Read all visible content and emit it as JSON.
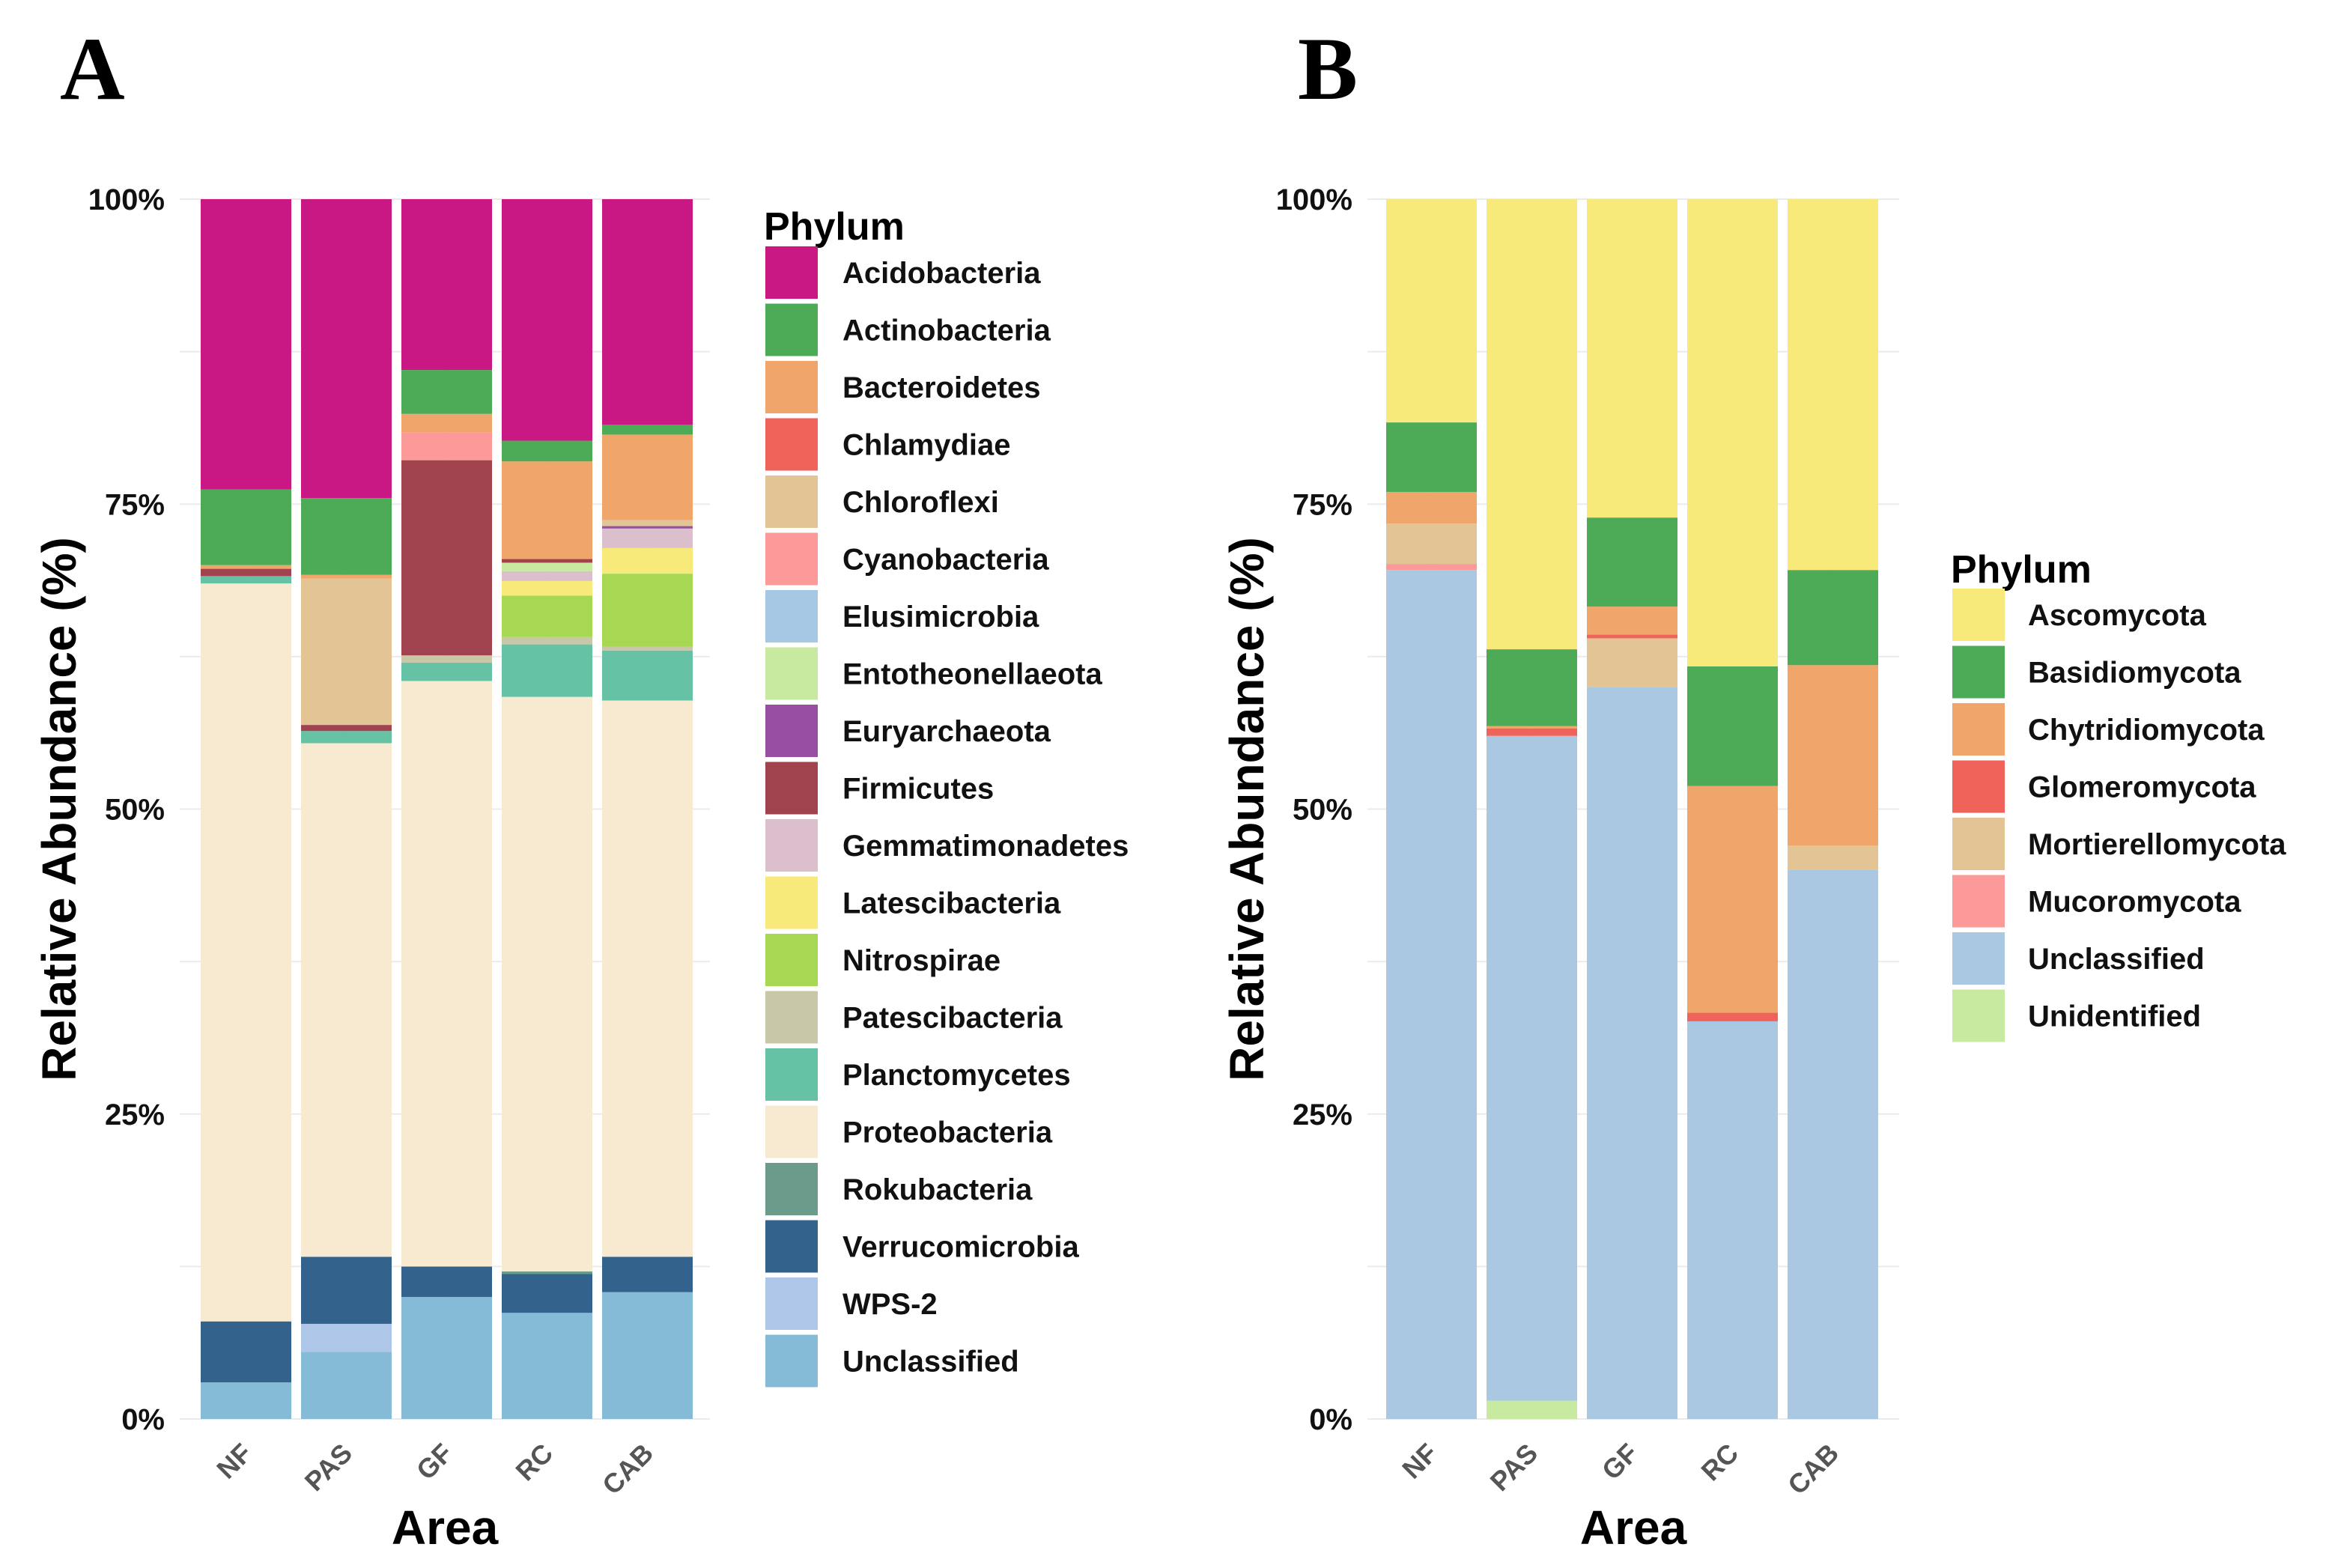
{
  "chart_data": [
    {
      "panel": "A",
      "type": "bar",
      "stacked": true,
      "xlabel": "Area",
      "ylabel": "Relative Abundance (%)",
      "ylim": [
        0,
        100
      ],
      "yticks": [
        "0%",
        "25%",
        "50%",
        "75%",
        "100%"
      ],
      "categories": [
        "NF",
        "PAS",
        "GF",
        "RC",
        "CAB"
      ],
      "legend_title": "Phylum",
      "series": [
        {
          "name": "Unclassified",
          "color": "#86bbd8",
          "values": [
            3.0,
            5.5,
            10.0,
            8.7,
            10.4
          ]
        },
        {
          "name": "WPS-2",
          "color": "#aec7e8",
          "values": [
            0.0,
            2.3,
            0.0,
            0.0,
            0.0
          ]
        },
        {
          "name": "Verrucomicrobia",
          "color": "#33638d",
          "values": [
            5.0,
            5.5,
            2.5,
            3.2,
            2.9
          ]
        },
        {
          "name": "Rokubacteria",
          "color": "#6a9b8b",
          "values": [
            0.0,
            0.0,
            0.0,
            0.2,
            0.0
          ]
        },
        {
          "name": "Proteobacteria",
          "color": "#f7ead0",
          "values": [
            60.5,
            42.1,
            48.0,
            47.1,
            45.6
          ]
        },
        {
          "name": "Planctomycetes",
          "color": "#66c2a5",
          "values": [
            0.6,
            1.0,
            1.5,
            4.3,
            4.1
          ]
        },
        {
          "name": "Patescibacteria",
          "color": "#c8c8a9",
          "values": [
            0.0,
            0.0,
            0.6,
            0.6,
            0.3
          ]
        },
        {
          "name": "Nitrospirae",
          "color": "#a6d854",
          "values": [
            0.0,
            0.0,
            0.0,
            3.4,
            6.0
          ]
        },
        {
          "name": "Latescibacteria",
          "color": "#f7ea7b",
          "values": [
            0.0,
            0.0,
            0.0,
            1.2,
            2.1
          ]
        },
        {
          "name": "Gemmatimonadetes",
          "color": "#dbbfcc",
          "values": [
            0.0,
            0.0,
            0.0,
            0.8,
            1.6
          ]
        },
        {
          "name": "Euryarchaeota",
          "color": "#984ea3",
          "values": [
            0.0,
            0.0,
            0.0,
            0.0,
            0.2
          ]
        },
        {
          "name": "Entotheonellaeota",
          "color": "#c7e9a0",
          "values": [
            0.0,
            0.0,
            0.0,
            0.7,
            0.0
          ]
        },
        {
          "name": "Firmicutes",
          "color": "#a0434f",
          "values": [
            0.6,
            0.5,
            16.0,
            0.3,
            0.0
          ]
        },
        {
          "name": "Elusimicrobia",
          "color": "#a6c8e4",
          "values": [
            0.0,
            0.0,
            0.0,
            0.0,
            0.0
          ]
        },
        {
          "name": "Cyanobacteria",
          "color": "#fb9a99",
          "values": [
            0.0,
            0.0,
            2.3,
            0.0,
            0.0
          ]
        },
        {
          "name": "Chloroflexi",
          "color": "#e3c595",
          "values": [
            0.0,
            12.0,
            0.0,
            0.0,
            0.5
          ]
        },
        {
          "name": "Chlamydiae",
          "color": "#f0635a",
          "values": [
            0.0,
            0.0,
            0.0,
            0.0,
            0.0
          ]
        },
        {
          "name": "Bacteroidetes",
          "color": "#f0a56a",
          "values": [
            0.3,
            0.3,
            1.5,
            8.0,
            7.0
          ]
        },
        {
          "name": "Actinobacteria",
          "color": "#4daa57",
          "values": [
            6.2,
            6.3,
            3.6,
            1.7,
            0.8
          ]
        },
        {
          "name": "Acidobacteria",
          "color": "#c91884",
          "values": [
            23.8,
            24.5,
            14.0,
            19.8,
            18.5
          ]
        }
      ],
      "legend_order": [
        "Acidobacteria",
        "Actinobacteria",
        "Bacteroidetes",
        "Chlamydiae",
        "Chloroflexi",
        "Cyanobacteria",
        "Elusimicrobia",
        "Entotheonellaeota",
        "Euryarchaeota",
        "Firmicutes",
        "Gemmatimonadetes",
        "Latescibacteria",
        "Nitrospirae",
        "Patescibacteria",
        "Planctomycetes",
        "Proteobacteria",
        "Rokubacteria",
        "Verrucomicrobia",
        "WPS-2",
        "Unclassified"
      ]
    },
    {
      "panel": "B",
      "type": "bar",
      "stacked": true,
      "xlabel": "Area",
      "ylabel": "Relative Abundance (%)",
      "ylim": [
        0,
        100
      ],
      "yticks": [
        "0%",
        "25%",
        "50%",
        "75%",
        "100%"
      ],
      "categories": [
        "NF",
        "PAS",
        "GF",
        "RC",
        "CAB"
      ],
      "legend_title": "Phylum",
      "series": [
        {
          "name": "Unidentified",
          "color": "#c7e9a0",
          "values": [
            0.0,
            1.5,
            0.0,
            0.0,
            0.0
          ]
        },
        {
          "name": "Unclassified",
          "color": "#abc8e3",
          "values": [
            69.6,
            54.5,
            60.0,
            32.6,
            45.0
          ]
        },
        {
          "name": "Mucoromycota",
          "color": "#fb9a99",
          "values": [
            0.5,
            0.0,
            0.0,
            0.0,
            0.0
          ]
        },
        {
          "name": "Mortierellomycota",
          "color": "#e3c595",
          "values": [
            3.3,
            0.0,
            4.0,
            0.0,
            2.0
          ]
        },
        {
          "name": "Glomeromycota",
          "color": "#f0635a",
          "values": [
            0.0,
            0.6,
            0.3,
            0.7,
            0.0
          ]
        },
        {
          "name": "Chytridiomycota",
          "color": "#f0a56a",
          "values": [
            2.6,
            0.2,
            2.3,
            18.6,
            14.8
          ]
        },
        {
          "name": "Basidiomycota",
          "color": "#4daa57",
          "values": [
            5.7,
            6.3,
            7.3,
            9.8,
            7.8
          ]
        },
        {
          "name": "Ascomycota",
          "color": "#f7ea7b",
          "values": [
            18.3,
            36.9,
            26.1,
            38.3,
            30.4
          ]
        }
      ],
      "legend_order": [
        "Ascomycota",
        "Basidiomycota",
        "Chytridiomycota",
        "Glomeromycota",
        "Mortierellomycota",
        "Mucoromycota",
        "Unclassified",
        "Unidentified"
      ]
    }
  ]
}
